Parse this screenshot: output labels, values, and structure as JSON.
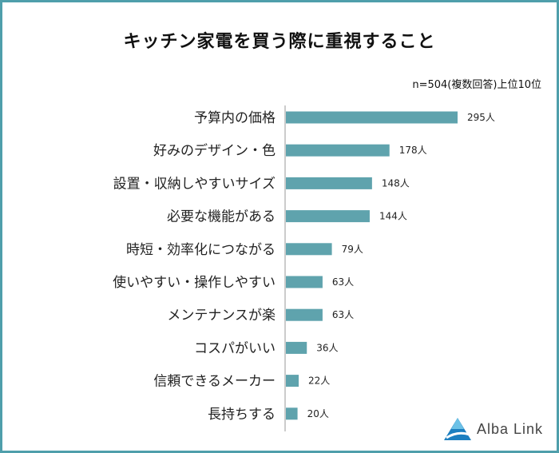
{
  "chart_data": {
    "type": "bar",
    "orientation": "horizontal",
    "title": "キッチン家電を買う際に重視すること",
    "note": "n=504(複数回答)上位10位",
    "categories": [
      "予算内の価格",
      "好みのデザイン・色",
      "設置・収納しやすいサイズ",
      "必要な機能がある",
      "時短・効率化につながる",
      "使いやすい・操作しやすい",
      "メンテナンスが楽",
      "コスパがいい",
      "信頼できるメーカー",
      "長持ちする"
    ],
    "values": [
      295,
      178,
      148,
      144,
      79,
      63,
      63,
      36,
      22,
      20
    ],
    "value_labels": [
      "295人",
      "178人",
      "148人",
      "144人",
      "79人",
      "63人",
      "63人",
      "36人",
      "22人",
      "20人"
    ],
    "bar_color": "#5fa3ad",
    "grid": false,
    "legend": "none"
  },
  "colors": {
    "frame": "#4f9fab",
    "bar": "#5fa3ad",
    "axis": "#999999"
  },
  "logo": {
    "text": "Alba Link",
    "icon": "alba-link-triangle-logo-icon"
  }
}
